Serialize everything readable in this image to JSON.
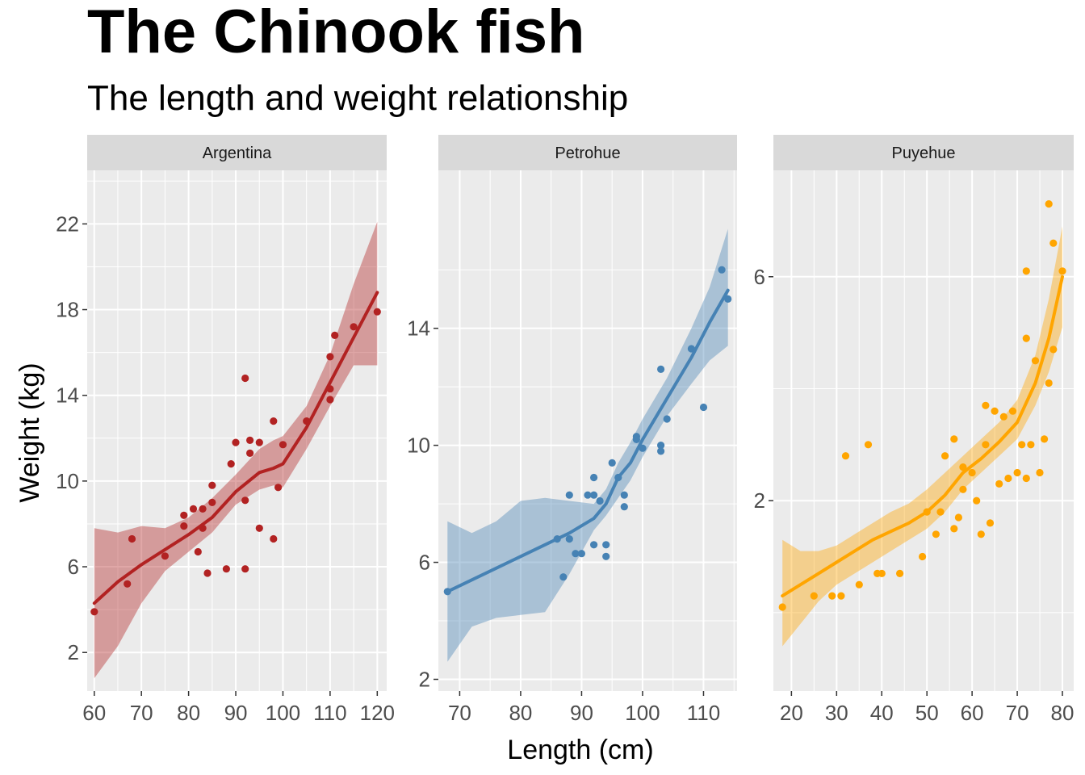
{
  "chart_data": {
    "type": "scatter",
    "title": "The Chinook fish",
    "subtitle": "The length and weight relationship",
    "xlabel": "Length (cm)",
    "ylabel": "Weight (kg)",
    "grid": true,
    "facets": [
      {
        "name": "Argentina",
        "color": "#B22222",
        "xlim": [
          58.5,
          122
        ],
        "ylim": [
          0.2,
          24.5
        ],
        "xticks": [
          60,
          70,
          80,
          90,
          100,
          110,
          120
        ],
        "yticks": [
          2,
          6,
          10,
          14,
          18,
          22
        ],
        "points": [
          [
            60,
            3.9
          ],
          [
            67,
            5.2
          ],
          [
            68,
            7.3
          ],
          [
            75,
            6.5
          ],
          [
            79,
            7.9
          ],
          [
            79,
            8.4
          ],
          [
            81,
            8.7
          ],
          [
            82,
            6.7
          ],
          [
            83,
            7.8
          ],
          [
            83,
            8.7
          ],
          [
            84,
            5.7
          ],
          [
            85,
            9.0
          ],
          [
            85,
            9.8
          ],
          [
            88,
            5.9
          ],
          [
            89,
            10.8
          ],
          [
            90,
            11.8
          ],
          [
            92,
            14.8
          ],
          [
            92,
            9.1
          ],
          [
            92,
            5.9
          ],
          [
            93,
            11.3
          ],
          [
            93,
            11.9
          ],
          [
            95,
            11.8
          ],
          [
            95,
            7.8
          ],
          [
            98,
            12.8
          ],
          [
            98,
            7.3
          ],
          [
            99,
            9.7
          ],
          [
            100,
            11.7
          ],
          [
            105,
            12.8
          ],
          [
            110,
            13.8
          ],
          [
            110,
            14.3
          ],
          [
            110,
            15.8
          ],
          [
            111,
            16.8
          ],
          [
            115,
            17.2
          ],
          [
            120,
            17.9
          ]
        ],
        "smooth": [
          [
            60,
            4.3
          ],
          [
            65,
            5.3
          ],
          [
            70,
            6.1
          ],
          [
            75,
            6.8
          ],
          [
            80,
            7.5
          ],
          [
            85,
            8.3
          ],
          [
            90,
            9.5
          ],
          [
            95,
            10.4
          ],
          [
            98,
            10.6
          ],
          [
            100,
            10.8
          ],
          [
            105,
            12.5
          ],
          [
            110,
            14.6
          ],
          [
            115,
            16.7
          ],
          [
            120,
            18.8
          ]
        ],
        "band": [
          [
            60,
            0.8,
            7.8
          ],
          [
            65,
            2.3,
            7.6
          ],
          [
            70,
            4.3,
            7.9
          ],
          [
            75,
            5.8,
            7.8
          ],
          [
            80,
            6.7,
            8.3
          ],
          [
            85,
            7.6,
            9.2
          ],
          [
            90,
            8.9,
            10.3
          ],
          [
            95,
            9.6,
            11.5
          ],
          [
            98,
            9.8,
            11.9
          ],
          [
            100,
            9.7,
            12.1
          ],
          [
            105,
            11.5,
            13.5
          ],
          [
            110,
            13.5,
            15.9
          ],
          [
            115,
            15.4,
            19.2
          ],
          [
            120,
            15.4,
            22.1
          ]
        ]
      },
      {
        "name": "Petrohue",
        "color": "#4682B4",
        "xlim": [
          66.5,
          115.5
        ],
        "ylim": [
          1.6,
          19.4
        ],
        "xticks": [
          70,
          80,
          90,
          100,
          110
        ],
        "yticks": [
          2,
          6,
          10,
          14
        ],
        "points": [
          [
            68,
            5.0
          ],
          [
            86,
            6.8
          ],
          [
            87,
            5.5
          ],
          [
            88,
            8.3
          ],
          [
            88,
            6.8
          ],
          [
            89,
            6.3
          ],
          [
            90,
            6.3
          ],
          [
            91,
            8.3
          ],
          [
            92,
            8.9
          ],
          [
            92,
            8.3
          ],
          [
            92,
            6.6
          ],
          [
            93,
            8.1
          ],
          [
            94,
            6.6
          ],
          [
            94,
            6.2
          ],
          [
            95,
            9.4
          ],
          [
            96,
            8.9
          ],
          [
            97,
            7.9
          ],
          [
            97,
            8.3
          ],
          [
            99,
            10.3
          ],
          [
            99,
            10.2
          ],
          [
            100,
            9.9
          ],
          [
            103,
            12.6
          ],
          [
            103,
            10.0
          ],
          [
            103,
            9.8
          ],
          [
            104,
            10.9
          ],
          [
            108,
            13.3
          ],
          [
            110,
            11.3
          ],
          [
            113,
            16.0
          ],
          [
            114,
            15.0
          ]
        ],
        "smooth": [
          [
            68,
            5.0
          ],
          [
            72,
            5.4
          ],
          [
            76,
            5.8
          ],
          [
            80,
            6.2
          ],
          [
            84,
            6.6
          ],
          [
            88,
            7.0
          ],
          [
            92,
            7.5
          ],
          [
            94,
            8.0
          ],
          [
            96,
            8.9
          ],
          [
            98,
            9.4
          ],
          [
            100,
            10.2
          ],
          [
            104,
            11.6
          ],
          [
            108,
            13.0
          ],
          [
            111,
            14.2
          ],
          [
            114,
            15.3
          ]
        ],
        "band": [
          [
            68,
            2.6,
            7.4
          ],
          [
            72,
            3.8,
            7.0
          ],
          [
            76,
            4.1,
            7.4
          ],
          [
            80,
            4.2,
            8.1
          ],
          [
            84,
            4.3,
            8.2
          ],
          [
            88,
            5.6,
            8.1
          ],
          [
            92,
            7.1,
            8.0
          ],
          [
            94,
            7.6,
            8.5
          ],
          [
            96,
            8.2,
            9.4
          ],
          [
            98,
            8.8,
            10.1
          ],
          [
            100,
            9.6,
            10.9
          ],
          [
            104,
            11.0,
            12.3
          ],
          [
            108,
            12.1,
            14.0
          ],
          [
            111,
            12.9,
            15.4
          ],
          [
            114,
            13.4,
            17.4
          ]
        ]
      },
      {
        "name": "Puyehue",
        "color": "#FFA500",
        "xlim": [
          16,
          82.5
        ],
        "ylim": [
          -1.4,
          7.9
        ],
        "xticks": [
          20,
          30,
          40,
          50,
          60,
          70,
          80
        ],
        "yticks": [
          2,
          6
        ],
        "points": [
          [
            18,
            0.1
          ],
          [
            25,
            0.3
          ],
          [
            29,
            0.3
          ],
          [
            31,
            0.3
          ],
          [
            32,
            2.8
          ],
          [
            35,
            0.5
          ],
          [
            37,
            3.0
          ],
          [
            39,
            0.7
          ],
          [
            40,
            0.7
          ],
          [
            44,
            0.7
          ],
          [
            49,
            1.0
          ],
          [
            50,
            1.8
          ],
          [
            52,
            1.4
          ],
          [
            53,
            1.8
          ],
          [
            54,
            2.8
          ],
          [
            56,
            3.1
          ],
          [
            56,
            1.5
          ],
          [
            57,
            1.7
          ],
          [
            58,
            2.6
          ],
          [
            58,
            2.2
          ],
          [
            60,
            2.5
          ],
          [
            61,
            2.0
          ],
          [
            62,
            1.4
          ],
          [
            63,
            3.0
          ],
          [
            63,
            3.7
          ],
          [
            64,
            1.6
          ],
          [
            65,
            3.6
          ],
          [
            66,
            2.3
          ],
          [
            67,
            3.5
          ],
          [
            68,
            2.4
          ],
          [
            69,
            3.6
          ],
          [
            70,
            2.5
          ],
          [
            71,
            3.0
          ],
          [
            72,
            2.4
          ],
          [
            72,
            6.1
          ],
          [
            72,
            4.9
          ],
          [
            73,
            3.0
          ],
          [
            74,
            4.5
          ],
          [
            75,
            2.5
          ],
          [
            76,
            3.1
          ],
          [
            77,
            7.3
          ],
          [
            77,
            4.1
          ],
          [
            78,
            6.6
          ],
          [
            78,
            4.7
          ],
          [
            80,
            6.1
          ]
        ],
        "smooth": [
          [
            18,
            0.3
          ],
          [
            22,
            0.5
          ],
          [
            26,
            0.7
          ],
          [
            30,
            0.9
          ],
          [
            34,
            1.1
          ],
          [
            38,
            1.3
          ],
          [
            42,
            1.45
          ],
          [
            46,
            1.6
          ],
          [
            50,
            1.8
          ],
          [
            54,
            2.1
          ],
          [
            58,
            2.5
          ],
          [
            62,
            2.75
          ],
          [
            66,
            3.05
          ],
          [
            70,
            3.4
          ],
          [
            74,
            4.1
          ],
          [
            77,
            4.9
          ],
          [
            80,
            6.0
          ]
        ],
        "band": [
          [
            18,
            -0.6,
            1.3
          ],
          [
            22,
            -0.2,
            1.1
          ],
          [
            26,
            0.2,
            1.1
          ],
          [
            30,
            0.5,
            1.2
          ],
          [
            34,
            0.7,
            1.4
          ],
          [
            38,
            0.9,
            1.6
          ],
          [
            42,
            1.1,
            1.8
          ],
          [
            46,
            1.3,
            1.95
          ],
          [
            50,
            1.5,
            2.2
          ],
          [
            54,
            1.8,
            2.5
          ],
          [
            58,
            2.2,
            2.8
          ],
          [
            62,
            2.5,
            3.1
          ],
          [
            66,
            2.8,
            3.4
          ],
          [
            70,
            3.1,
            3.8
          ],
          [
            74,
            3.7,
            4.6
          ],
          [
            77,
            4.3,
            5.6
          ],
          [
            80,
            5.1,
            6.9
          ]
        ]
      }
    ]
  }
}
